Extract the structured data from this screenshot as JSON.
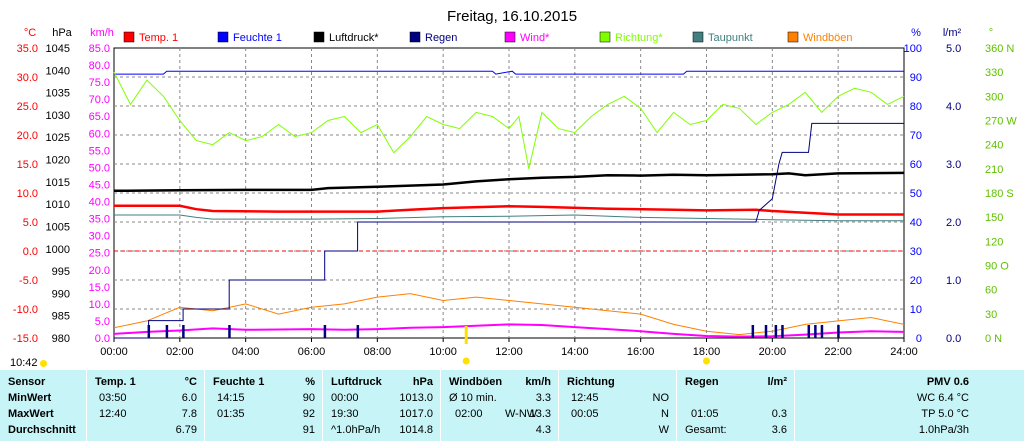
{
  "title": "Freitag, 16.10.2015",
  "current_time": "10:42",
  "legend": [
    {
      "label": "Temp. 1",
      "color": "#ff0000"
    },
    {
      "label": "Feuchte 1",
      "color": "#0000ff"
    },
    {
      "label": "Luftdruck*",
      "color": "#000000"
    },
    {
      "label": "Regen",
      "color": "#000080"
    },
    {
      "label": "Wind*",
      "color": "#ff00ff"
    },
    {
      "label": "Richtung*",
      "color": "#80ff00"
    },
    {
      "label": "Taupunkt",
      "color": "#408080"
    },
    {
      "label": "Windböen",
      "color": "#ff8000"
    }
  ],
  "chart_data": {
    "type": "line",
    "title": "Freitag, 16.10.2015",
    "x_ticks": [
      "00:00",
      "02:00",
      "04:00",
      "06:00",
      "08:00",
      "10:00",
      "12:00",
      "14:00",
      "16:00",
      "18:00",
      "20:00",
      "22:00",
      "24:00"
    ],
    "axes": {
      "temp": {
        "unit": "°C",
        "color": "#ff0000",
        "ylim": [
          -15,
          35
        ],
        "ticks": [
          "35.0",
          "30.0",
          "25.0",
          "20.0",
          "15.0",
          "10.0",
          "5.0",
          "0.0",
          "-5.0",
          "-10.0",
          "-15.0"
        ]
      },
      "hpa": {
        "unit": "hPa",
        "color": "#000000",
        "ylim": [
          980,
          1045
        ],
        "ticks": [
          "1045",
          "1040",
          "1035",
          "1030",
          "1025",
          "1020",
          "1015",
          "1010",
          "1005",
          "1000",
          "995",
          "990",
          "985",
          "980"
        ]
      },
      "kmh": {
        "unit": "km/h",
        "color": "#ff00ff",
        "ylim": [
          0,
          85
        ],
        "ticks": [
          "85.0",
          "80.0",
          "75.0",
          "70.0",
          "65.0",
          "60.0",
          "55.0",
          "50.0",
          "45.0",
          "40.0",
          "35.0",
          "30.0",
          "25.0",
          "20.0",
          "15.0",
          "10.0",
          "5.0",
          "0.0"
        ]
      },
      "pct": {
        "unit": "%",
        "color": "#0000ff",
        "ylim": [
          0,
          100
        ],
        "ticks": [
          "100",
          "90",
          "80",
          "70",
          "60",
          "50",
          "40",
          "30",
          "20",
          "10",
          "0"
        ]
      },
      "rain": {
        "unit": "l/m²",
        "color": "#000080",
        "ylim": [
          0,
          5
        ],
        "ticks": [
          "5.0",
          "4.0",
          "3.0",
          "2.0",
          "1.0",
          "0.0"
        ]
      },
      "dir": {
        "unit": "°",
        "color": "#60c000",
        "ylim": [
          0,
          360
        ],
        "ticks": [
          "360 N",
          "330",
          "300",
          "270 W",
          "240",
          "210",
          "180 S",
          "150",
          "120",
          "90 O",
          "60",
          "30",
          "0 N"
        ]
      }
    },
    "series": [
      {
        "name": "Feuchte 1",
        "axis": "pct",
        "color": "#0000ff",
        "points": [
          [
            0,
            91
          ],
          [
            1.5,
            91
          ],
          [
            1.6,
            92
          ],
          [
            11.5,
            92
          ],
          [
            11.6,
            91
          ],
          [
            12.1,
            92
          ],
          [
            12.2,
            91
          ],
          [
            17.3,
            91
          ],
          [
            17.4,
            92
          ],
          [
            24,
            92
          ]
        ]
      },
      {
        "name": "Luftdruck*",
        "axis": "hpa",
        "color": "#000000",
        "points": [
          [
            0,
            1013
          ],
          [
            2,
            1013.1
          ],
          [
            4,
            1013.2
          ],
          [
            6,
            1013.2
          ],
          [
            6.5,
            1013.6
          ],
          [
            8,
            1013.9
          ],
          [
            10,
            1014.4
          ],
          [
            11,
            1015.1
          ],
          [
            12,
            1015.6
          ],
          [
            13,
            1015.9
          ],
          [
            14,
            1016.1
          ],
          [
            15,
            1016.5
          ],
          [
            16,
            1016.4
          ],
          [
            17,
            1016.6
          ],
          [
            18,
            1016.5
          ],
          [
            19,
            1016.6
          ],
          [
            20,
            1016.7
          ],
          [
            20.5,
            1016.9
          ],
          [
            21,
            1016.5
          ],
          [
            22,
            1016.9
          ],
          [
            24,
            1017
          ]
        ]
      },
      {
        "name": "Temp. 1",
        "axis": "temp",
        "color": "#ff0000",
        "points": [
          [
            0,
            7.8
          ],
          [
            2,
            7.8
          ],
          [
            2.5,
            7.2
          ],
          [
            3,
            6.9
          ],
          [
            5,
            6.8
          ],
          [
            8,
            6.8
          ],
          [
            9,
            7.1
          ],
          [
            10,
            7.4
          ],
          [
            12,
            7.7
          ],
          [
            13,
            7.6
          ],
          [
            15,
            7.3
          ],
          [
            17,
            7.1
          ],
          [
            18,
            7.0
          ],
          [
            19.5,
            7.1
          ],
          [
            20,
            6.9
          ],
          [
            21,
            6.6
          ],
          [
            22,
            6.3
          ],
          [
            24,
            6.3
          ]
        ]
      },
      {
        "name": "Taupunkt",
        "axis": "temp",
        "color": "#408080",
        "points": [
          [
            0,
            6.2
          ],
          [
            2,
            6.2
          ],
          [
            2.5,
            5.8
          ],
          [
            3,
            5.5
          ],
          [
            6,
            5.5
          ],
          [
            8,
            5.6
          ],
          [
            10,
            5.9
          ],
          [
            12,
            6.0
          ],
          [
            14,
            6.2
          ],
          [
            16,
            5.8
          ],
          [
            18,
            5.6
          ],
          [
            20,
            5.4
          ],
          [
            22,
            5.2
          ],
          [
            24,
            5.2
          ]
        ]
      },
      {
        "name": "Regen",
        "axis": "rain",
        "color": "#000080",
        "step": true,
        "points": [
          [
            0,
            0
          ],
          [
            1.05,
            0
          ],
          [
            1.05,
            0.3
          ],
          [
            2.1,
            0.3
          ],
          [
            2.1,
            0.5
          ],
          [
            3.5,
            0.5
          ],
          [
            3.5,
            1.0
          ],
          [
            6.4,
            1.0
          ],
          [
            6.4,
            1.5
          ],
          [
            7.4,
            1.5
          ],
          [
            7.4,
            2.0
          ],
          [
            13.8,
            2.0
          ],
          [
            19.5,
            2.0
          ],
          [
            19.6,
            2.2
          ],
          [
            20.0,
            2.4
          ],
          [
            20.2,
            3.0
          ],
          [
            20.3,
            3.2
          ],
          [
            21.1,
            3.2
          ],
          [
            21.2,
            3.7
          ],
          [
            24,
            3.7
          ]
        ]
      },
      {
        "name": "Richtung*",
        "axis": "dir",
        "color": "#80ff00",
        "points": [
          [
            0,
            330
          ],
          [
            0.5,
            290
          ],
          [
            1.0,
            320
          ],
          [
            1.5,
            300
          ],
          [
            2.0,
            270
          ],
          [
            2.5,
            245
          ],
          [
            3.0,
            240
          ],
          [
            3.5,
            255
          ],
          [
            4.0,
            245
          ],
          [
            4.5,
            250
          ],
          [
            5.0,
            265
          ],
          [
            5.5,
            250
          ],
          [
            6.0,
            255
          ],
          [
            6.5,
            270
          ],
          [
            7.0,
            275
          ],
          [
            7.5,
            255
          ],
          [
            8.0,
            265
          ],
          [
            8.5,
            230
          ],
          [
            9.0,
            250
          ],
          [
            9.5,
            275
          ],
          [
            10.0,
            265
          ],
          [
            10.5,
            260
          ],
          [
            11.0,
            280
          ],
          [
            11.5,
            275
          ],
          [
            12.0,
            260
          ],
          [
            12.3,
            275
          ],
          [
            12.6,
            210
          ],
          [
            13.0,
            280
          ],
          [
            13.5,
            260
          ],
          [
            14.0,
            255
          ],
          [
            14.5,
            275
          ],
          [
            15.0,
            290
          ],
          [
            15.5,
            300
          ],
          [
            16.0,
            285
          ],
          [
            16.5,
            255
          ],
          [
            17.0,
            280
          ],
          [
            17.5,
            265
          ],
          [
            18.0,
            270
          ],
          [
            18.5,
            290
          ],
          [
            19.0,
            285
          ],
          [
            19.5,
            265
          ],
          [
            20.0,
            280
          ],
          [
            20.5,
            290
          ],
          [
            21.0,
            305
          ],
          [
            21.5,
            280
          ],
          [
            22.0,
            300
          ],
          [
            22.5,
            310
          ],
          [
            23.0,
            305
          ],
          [
            23.5,
            290
          ],
          [
            24,
            300
          ]
        ]
      }
    ],
    "wind_series": [
      {
        "name": "Wind*",
        "axis": "kmh",
        "color": "#ff00ff",
        "points": [
          [
            0,
            1.2
          ],
          [
            1,
            1.8
          ],
          [
            2,
            2.2
          ],
          [
            3,
            2.8
          ],
          [
            4,
            2.4
          ],
          [
            5,
            2.5
          ],
          [
            6,
            2.6
          ],
          [
            7,
            2.4
          ],
          [
            8,
            2.6
          ],
          [
            9,
            3.0
          ],
          [
            10,
            3.2
          ],
          [
            11,
            3.6
          ],
          [
            12,
            4.0
          ],
          [
            13,
            3.8
          ],
          [
            14,
            3.2
          ],
          [
            15,
            2.6
          ],
          [
            16,
            2.0
          ],
          [
            17,
            1.2
          ],
          [
            18,
            0.6
          ],
          [
            19,
            0.4
          ],
          [
            20,
            0.5
          ],
          [
            21,
            1.0
          ],
          [
            22,
            1.6
          ],
          [
            23,
            2.0
          ],
          [
            24,
            1.8
          ]
        ]
      },
      {
        "name": "Windböen",
        "axis": "kmh",
        "color": "#ff8000",
        "points": [
          [
            0,
            3
          ],
          [
            1,
            5
          ],
          [
            2,
            9
          ],
          [
            3,
            8
          ],
          [
            4,
            10
          ],
          [
            5,
            7
          ],
          [
            6,
            9
          ],
          [
            7,
            10
          ],
          [
            8,
            12
          ],
          [
            9,
            13
          ],
          [
            10,
            11
          ],
          [
            11,
            12
          ],
          [
            12,
            11
          ],
          [
            13,
            10
          ],
          [
            14,
            9
          ],
          [
            15,
            8
          ],
          [
            16,
            7
          ],
          [
            17,
            4
          ],
          [
            18,
            2
          ],
          [
            19,
            1
          ],
          [
            20,
            2
          ],
          [
            21,
            4
          ],
          [
            22,
            5
          ],
          [
            23,
            6
          ],
          [
            24,
            4
          ]
        ]
      }
    ],
    "rain_bars": [
      1.05,
      1.6,
      2.1,
      3.5,
      6.4,
      7.4,
      19.4,
      19.8,
      20.1,
      20.3,
      21.1,
      21.3,
      21.5,
      22.0
    ]
  },
  "table": {
    "row_labels": [
      "Sensor",
      "MinWert",
      "MaxWert",
      "Durchschnitt"
    ],
    "temp": {
      "title": "Temp. 1",
      "unit": "°C",
      "min_time": "03:50",
      "min": "6.0",
      "max_time": "12:40",
      "max": "7.8",
      "avg": "6.79"
    },
    "hum": {
      "title": "Feuchte 1",
      "unit": "%",
      "min_time": "14:15",
      "min": "90",
      "max_time": "01:35",
      "max": "92",
      "avg": "91"
    },
    "press": {
      "title": "Luftdruck",
      "unit": "hPa",
      "min_time": "00:00",
      "min": "1013.0",
      "max_time": "19:30",
      "max": "1017.0",
      "avg_label": "^1.0hPa/h",
      "avg": "1014.8"
    },
    "gust": {
      "title": "Windböen",
      "unit": "km/h",
      "min_label": "Ø 10 min.",
      "min": "3.3",
      "max_time": "02:00",
      "max_dir": "W-NW",
      "max": "13.3",
      "avg": "4.3"
    },
    "dir": {
      "title": "Richtung",
      "min_time": "12:45",
      "min": "NO",
      "max_time": "00:05",
      "max": "N",
      "avg": "W"
    },
    "rain": {
      "title": "Regen",
      "unit": "l/m²",
      "max_time": "01:05",
      "max": "0.3",
      "total_label": "Gesamt:",
      "total": "3.6"
    },
    "pmv": {
      "title": "PMV 0.6",
      "wc": "WC 6.4 °C",
      "tp": "TP 5.0 °C",
      "trend": "1.0hPa/3h"
    }
  }
}
